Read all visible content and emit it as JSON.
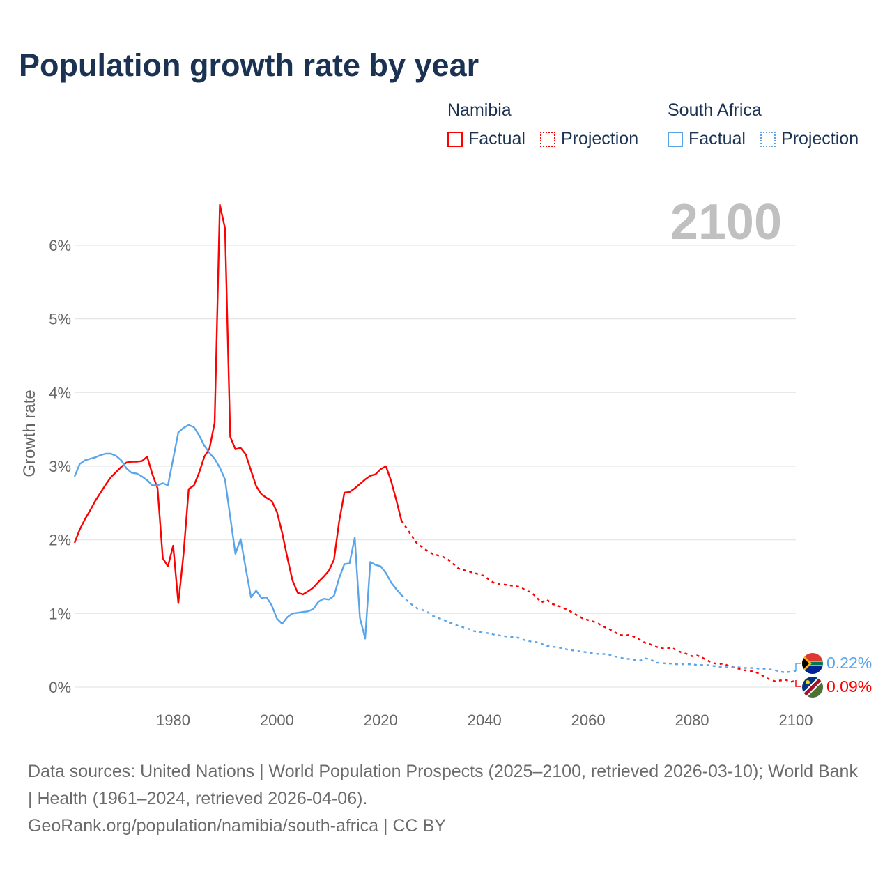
{
  "title": "Population growth rate by year",
  "current_year": "2100",
  "legend": [
    {
      "group": "Namibia",
      "factual": "Factual",
      "projection": "Projection",
      "color": "#ff0000"
    },
    {
      "group": "South Africa",
      "factual": "Factual",
      "projection": "Projection",
      "color": "#5aa5ea"
    }
  ],
  "end_labels": {
    "south_africa": "0.22%",
    "namibia": "0.09%"
  },
  "footer": {
    "sources": "Data sources: United Nations | World Population Prospects (2025–2100, retrieved 2026-03-10); World Bank | Health (1961–2024, retrieved 2026-04-06).",
    "credit": "GeoRank.org/population/namibia/south-africa | CC BY"
  },
  "chart_data": {
    "type": "line",
    "title": "Population growth rate by year",
    "xlabel": "",
    "ylabel": "Growth rate",
    "xlim": [
      1961,
      2100
    ],
    "ylim": [
      0,
      6.6
    ],
    "x_ticks": [
      "1980",
      "2000",
      "2020",
      "2040",
      "2060",
      "2080",
      "2100"
    ],
    "y_ticks": [
      "0%",
      "1%",
      "2%",
      "3%",
      "4%",
      "5%",
      "6%"
    ],
    "grid": true,
    "legend_position": "top-right",
    "series": [
      {
        "name": "Namibia Factual",
        "color": "#ff0000",
        "dashed": false,
        "start_year": 1961,
        "values": [
          1.96,
          2.14,
          2.28,
          2.4,
          2.53,
          2.64,
          2.75,
          2.85,
          2.92,
          2.99,
          3.05,
          3.06,
          3.06,
          3.07,
          3.13,
          2.89,
          2.7,
          1.75,
          1.64,
          1.92,
          1.14,
          1.81,
          2.69,
          2.74,
          2.91,
          3.13,
          3.24,
          3.59,
          6.55,
          6.23,
          3.4,
          3.23,
          3.25,
          3.16,
          2.94,
          2.73,
          2.62,
          2.57,
          2.53,
          2.38,
          2.1,
          1.76,
          1.45,
          1.28,
          1.26,
          1.3,
          1.35,
          1.43,
          1.5,
          1.58,
          1.73,
          2.25,
          2.64,
          2.65,
          2.7,
          2.76,
          2.82,
          2.87,
          2.89,
          2.96,
          3.0,
          2.8,
          2.54,
          2.26
        ]
      },
      {
        "name": "Namibia Projection",
        "color": "#ff0000",
        "dashed": true,
        "start_year": 2025,
        "values": [
          2.16,
          2.05,
          1.95,
          1.9,
          1.85,
          1.81,
          1.79,
          1.77,
          1.73,
          1.67,
          1.61,
          1.59,
          1.57,
          1.55,
          1.53,
          1.51,
          1.45,
          1.41,
          1.4,
          1.39,
          1.38,
          1.37,
          1.36,
          1.31,
          1.29,
          1.22,
          1.15,
          1.19,
          1.13,
          1.11,
          1.08,
          1.05,
          1.01,
          0.97,
          0.93,
          0.91,
          0.89,
          0.86,
          0.82,
          0.79,
          0.75,
          0.71,
          0.7,
          0.71,
          0.68,
          0.64,
          0.6,
          0.58,
          0.55,
          0.53,
          0.52,
          0.54,
          0.5,
          0.47,
          0.45,
          0.42,
          0.43,
          0.4,
          0.36,
          0.33,
          0.31,
          0.32,
          0.29,
          0.27,
          0.25,
          0.23,
          0.22,
          0.21,
          0.18,
          0.14,
          0.1,
          0.08,
          0.09,
          0.1,
          0.07,
          0.09
        ]
      },
      {
        "name": "South Africa Factual",
        "color": "#5aa5ea",
        "dashed": false,
        "start_year": 1961,
        "values": [
          2.86,
          3.03,
          3.08,
          3.1,
          3.12,
          3.15,
          3.17,
          3.17,
          3.14,
          3.08,
          2.97,
          2.91,
          2.9,
          2.86,
          2.81,
          2.74,
          2.74,
          2.77,
          2.74,
          3.1,
          3.46,
          3.52,
          3.56,
          3.53,
          3.42,
          3.28,
          3.18,
          3.1,
          2.98,
          2.82,
          2.31,
          1.81,
          2.01,
          1.61,
          1.22,
          1.31,
          1.21,
          1.22,
          1.11,
          0.93,
          0.86,
          0.95,
          1.0,
          1.01,
          1.02,
          1.03,
          1.06,
          1.16,
          1.2,
          1.19,
          1.24,
          1.48,
          1.67,
          1.68,
          2.03,
          0.94,
          0.66,
          1.7,
          1.66,
          1.64,
          1.55,
          1.42,
          1.33,
          1.25
        ]
      },
      {
        "name": "South Africa Projection",
        "color": "#5aa5ea",
        "dashed": true,
        "start_year": 2025,
        "values": [
          1.18,
          1.12,
          1.07,
          1.05,
          1.02,
          0.97,
          0.94,
          0.92,
          0.88,
          0.86,
          0.83,
          0.81,
          0.79,
          0.76,
          0.75,
          0.74,
          0.73,
          0.71,
          0.7,
          0.69,
          0.68,
          0.68,
          0.66,
          0.63,
          0.62,
          0.61,
          0.59,
          0.56,
          0.55,
          0.54,
          0.53,
          0.51,
          0.5,
          0.49,
          0.48,
          0.47,
          0.46,
          0.45,
          0.45,
          0.44,
          0.42,
          0.4,
          0.39,
          0.38,
          0.37,
          0.36,
          0.39,
          0.38,
          0.33,
          0.33,
          0.32,
          0.32,
          0.31,
          0.31,
          0.31,
          0.31,
          0.3,
          0.3,
          0.3,
          0.29,
          0.28,
          0.27,
          0.27,
          0.27,
          0.27,
          0.26,
          0.26,
          0.26,
          0.25,
          0.25,
          0.24,
          0.23,
          0.21,
          0.2,
          0.21,
          0.22
        ]
      }
    ]
  }
}
